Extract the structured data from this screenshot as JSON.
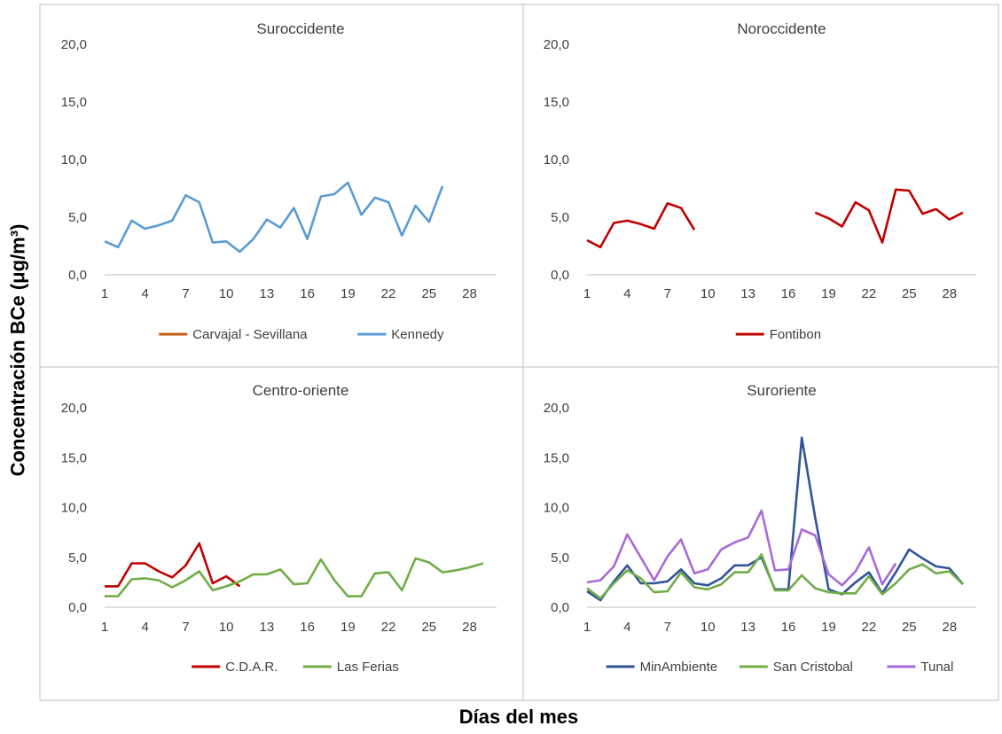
{
  "figure": {
    "ylabel": "Concentración BCe (μg/m³)",
    "xlabel": "Días del mes"
  },
  "chart_data": [
    {
      "type": "line",
      "title": "Suroccidente",
      "xlim": [
        1,
        30
      ],
      "ylim": [
        0,
        20
      ],
      "yticks": [
        0,
        5,
        10,
        15,
        20
      ],
      "ytick_labels": [
        "0,0",
        "5,0",
        "10,0",
        "15,0",
        "20,0"
      ],
      "xticks": [
        1,
        4,
        7,
        10,
        13,
        16,
        19,
        22,
        25,
        28
      ],
      "xtick_labels": [
        "1",
        "4",
        "7",
        "10",
        "13",
        "16",
        "19",
        "22",
        "25",
        "28"
      ],
      "grid": false,
      "legend": "bottom",
      "series": [
        {
          "name": "Carvajal - Sevillana",
          "color": "#c55a11",
          "x": [],
          "y": []
        },
        {
          "name": "Kennedy",
          "color": "#5b9bd5",
          "x": [
            1,
            2,
            3,
            4,
            5,
            6,
            7,
            8,
            9,
            10,
            11,
            12,
            13,
            14,
            15,
            16,
            17,
            18,
            19,
            20,
            21,
            22,
            23,
            24,
            25,
            26
          ],
          "y": [
            2.9,
            2.4,
            4.7,
            4.0,
            4.3,
            4.7,
            6.9,
            6.3,
            2.8,
            2.9,
            2.0,
            3.1,
            4.8,
            4.1,
            5.8,
            3.1,
            6.8,
            7.0,
            8.0,
            5.2,
            6.7,
            6.3,
            3.4,
            6.0,
            4.6,
            7.7
          ]
        }
      ]
    },
    {
      "type": "line",
      "title": "Noroccidente",
      "xlim": [
        1,
        30
      ],
      "ylim": [
        0,
        20
      ],
      "yticks": [
        0,
        5,
        10,
        15,
        20
      ],
      "ytick_labels": [
        "0,0",
        "5,0",
        "10,0",
        "15,0",
        "20,0"
      ],
      "xticks": [
        1,
        4,
        7,
        10,
        13,
        16,
        19,
        22,
        25,
        28
      ],
      "xtick_labels": [
        "1",
        "4",
        "7",
        "10",
        "13",
        "16",
        "19",
        "22",
        "25",
        "28"
      ],
      "grid": false,
      "legend": "bottom",
      "series": [
        {
          "name": "Fontibon",
          "color": "#c00000",
          "x": [
            1,
            2,
            3,
            4,
            5,
            6,
            7,
            8,
            9,
            null,
            18,
            19,
            20,
            21,
            22,
            23,
            24,
            25,
            26,
            27,
            28,
            29
          ],
          "y": [
            3.0,
            2.4,
            4.5,
            4.7,
            4.4,
            4.0,
            6.2,
            5.8,
            3.9,
            null,
            5.4,
            4.9,
            4.2,
            6.3,
            5.6,
            2.8,
            7.4,
            7.3,
            5.3,
            5.7,
            4.8,
            5.4
          ]
        }
      ]
    },
    {
      "type": "line",
      "title": "Centro-oriente",
      "xlim": [
        1,
        30
      ],
      "ylim": [
        0,
        20
      ],
      "yticks": [
        0,
        5,
        10,
        15,
        20
      ],
      "ytick_labels": [
        "0,0",
        "5,0",
        "10,0",
        "15,0",
        "20,0"
      ],
      "xticks": [
        1,
        4,
        7,
        10,
        13,
        16,
        19,
        22,
        25,
        28
      ],
      "xtick_labels": [
        "1",
        "4",
        "7",
        "10",
        "13",
        "16",
        "19",
        "22",
        "25",
        "28"
      ],
      "grid": false,
      "legend": "bottom",
      "series": [
        {
          "name": "C.D.A.R.",
          "color": "#c00000",
          "x": [
            1,
            2,
            3,
            4,
            5,
            6,
            7,
            8,
            9,
            10,
            11
          ],
          "y": [
            2.1,
            2.1,
            4.4,
            4.4,
            3.6,
            3.0,
            4.2,
            6.4,
            2.4,
            3.1,
            2.1
          ]
        },
        {
          "name": "Las Ferias",
          "color": "#70ad47",
          "x": [
            1,
            2,
            3,
            4,
            5,
            6,
            7,
            8,
            9,
            10,
            11,
            12,
            13,
            14,
            15,
            16,
            17,
            18,
            19,
            20,
            21,
            22,
            23,
            24,
            25,
            26,
            27,
            28,
            29
          ],
          "y": [
            1.1,
            1.1,
            2.8,
            2.9,
            2.7,
            2.0,
            2.7,
            3.6,
            1.7,
            2.1,
            2.6,
            3.3,
            3.3,
            3.8,
            2.3,
            2.4,
            4.8,
            2.7,
            1.1,
            1.1,
            3.4,
            3.5,
            1.7,
            4.9,
            4.5,
            3.5,
            3.7,
            4.0,
            4.4
          ]
        }
      ]
    },
    {
      "type": "line",
      "title": "Suroriente",
      "xlim": [
        1,
        30
      ],
      "ylim": [
        0,
        20
      ],
      "yticks": [
        0,
        5,
        10,
        15,
        20
      ],
      "ytick_labels": [
        "0,0",
        "5,0",
        "10,0",
        "15,0",
        "20,0"
      ],
      "xticks": [
        1,
        4,
        7,
        10,
        13,
        16,
        19,
        22,
        25,
        28
      ],
      "xtick_labels": [
        "1",
        "4",
        "7",
        "10",
        "13",
        "16",
        "19",
        "22",
        "25",
        "28"
      ],
      "grid": false,
      "legend": "bottom",
      "series": [
        {
          "name": "MinAmbiente",
          "color": "#2f5597",
          "x": [
            1,
            2,
            3,
            4,
            5,
            6,
            7,
            8,
            9,
            10,
            11,
            12,
            13,
            14,
            15,
            16,
            17,
            18,
            19,
            20,
            21,
            22,
            23,
            24,
            25,
            26,
            27,
            28,
            29
          ],
          "y": [
            1.6,
            0.7,
            2.6,
            4.2,
            2.4,
            2.4,
            2.6,
            3.8,
            2.4,
            2.2,
            2.9,
            4.2,
            4.2,
            5.0,
            1.8,
            1.8,
            17.0,
            9.0,
            1.8,
            1.3,
            2.5,
            3.5,
            1.4,
            3.5,
            5.8,
            4.9,
            4.1,
            3.9,
            2.3
          ]
        },
        {
          "name": "San Cristobal",
          "color": "#70ad47",
          "x": [
            1,
            2,
            3,
            4,
            5,
            6,
            7,
            8,
            9,
            10,
            11,
            12,
            13,
            14,
            15,
            16,
            17,
            18,
            19,
            20,
            21,
            22,
            23,
            24,
            25,
            26,
            27,
            28,
            29
          ],
          "y": [
            1.9,
            0.9,
            2.4,
            3.7,
            2.9,
            1.5,
            1.6,
            3.5,
            2.0,
            1.8,
            2.3,
            3.5,
            3.5,
            5.3,
            1.7,
            1.7,
            3.2,
            1.9,
            1.5,
            1.4,
            1.4,
            3.1,
            1.3,
            2.4,
            3.8,
            4.3,
            3.4,
            3.6,
            2.3
          ]
        },
        {
          "name": "Tunal",
          "color": "#a86ad8",
          "x": [
            1,
            2,
            3,
            4,
            5,
            6,
            7,
            8,
            9,
            10,
            11,
            12,
            13,
            14,
            15,
            16,
            17,
            18,
            19,
            20,
            21,
            22,
            23,
            24
          ],
          "y": [
            2.5,
            2.7,
            4.1,
            7.3,
            5.0,
            2.7,
            5.1,
            6.8,
            3.4,
            3.8,
            5.8,
            6.5,
            7.0,
            9.7,
            3.7,
            3.8,
            7.8,
            7.2,
            3.3,
            2.2,
            3.6,
            6.0,
            2.3,
            4.4
          ]
        }
      ]
    }
  ]
}
